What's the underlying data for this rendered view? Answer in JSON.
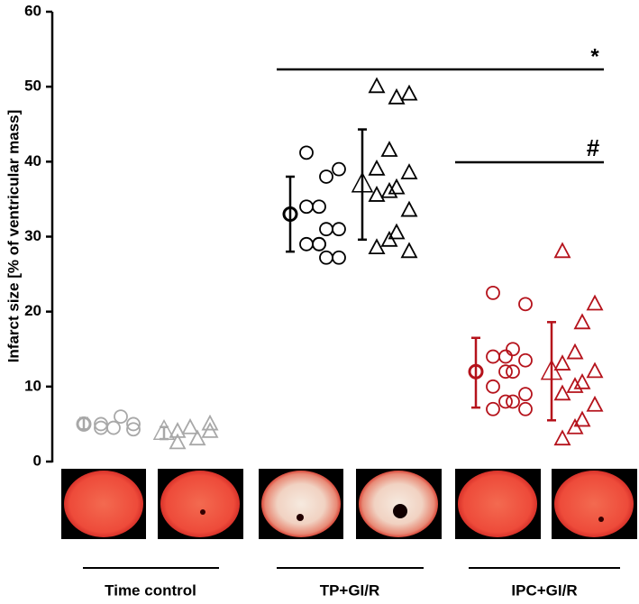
{
  "chart_data": {
    "type": "dotplot",
    "y_label": "Infarct size [% of ventricular mass]",
    "ylim": [
      0,
      60
    ],
    "yticks": [
      0,
      10,
      20,
      30,
      40,
      50,
      60
    ],
    "annotations": [
      "*",
      "#"
    ],
    "groups": [
      {
        "label": "Time control",
        "color": "#a8a8a8",
        "subgroups": [
          {
            "shape": "circle",
            "mean": 5,
            "lower": 4.3,
            "upper": 5.8,
            "points": [
              4.5,
              5,
              6,
              4.5,
              5,
              4.3
            ]
          },
          {
            "shape": "triangle",
            "mean": 4,
            "lower": 3,
            "upper": 4.6,
            "points": [
              4,
              5,
              3,
              4.5,
              2.5,
              4
            ]
          }
        ]
      },
      {
        "label": "TP+GI/R",
        "color": "#000000",
        "subgroups": [
          {
            "shape": "circle",
            "mean": 33,
            "lower": 28,
            "upper": 38,
            "points": [
              41.2,
              39,
              38,
              34,
              34,
              31,
              31,
              29,
              29,
              27.2,
              27.2,
              29
            ]
          },
          {
            "shape": "triangle",
            "mean": 37,
            "lower": 29.6,
            "upper": 44.3,
            "points": [
              50,
              49,
              48.5,
              41.5,
              39,
              38.5,
              36.5,
              36,
              35.5,
              33.5,
              30.5,
              29.5,
              28.5,
              28
            ]
          }
        ]
      },
      {
        "label": "IPC+GI/R",
        "color": "#b5121b",
        "subgroups": [
          {
            "shape": "circle",
            "mean": 12,
            "lower": 7.2,
            "upper": 16.5,
            "points": [
              22.5,
              21,
              15,
              14,
              14,
              13.5,
              12,
              12,
              10,
              9,
              8,
              8,
              7,
              7
            ]
          },
          {
            "shape": "triangle",
            "mean": 12,
            "lower": 5.5,
            "upper": 18.6,
            "points": [
              28,
              21,
              18.5,
              14.5,
              13,
              12,
              10.5,
              10,
              9,
              7.5,
              5.5,
              4.5,
              3
            ]
          }
        ]
      }
    ]
  }
}
